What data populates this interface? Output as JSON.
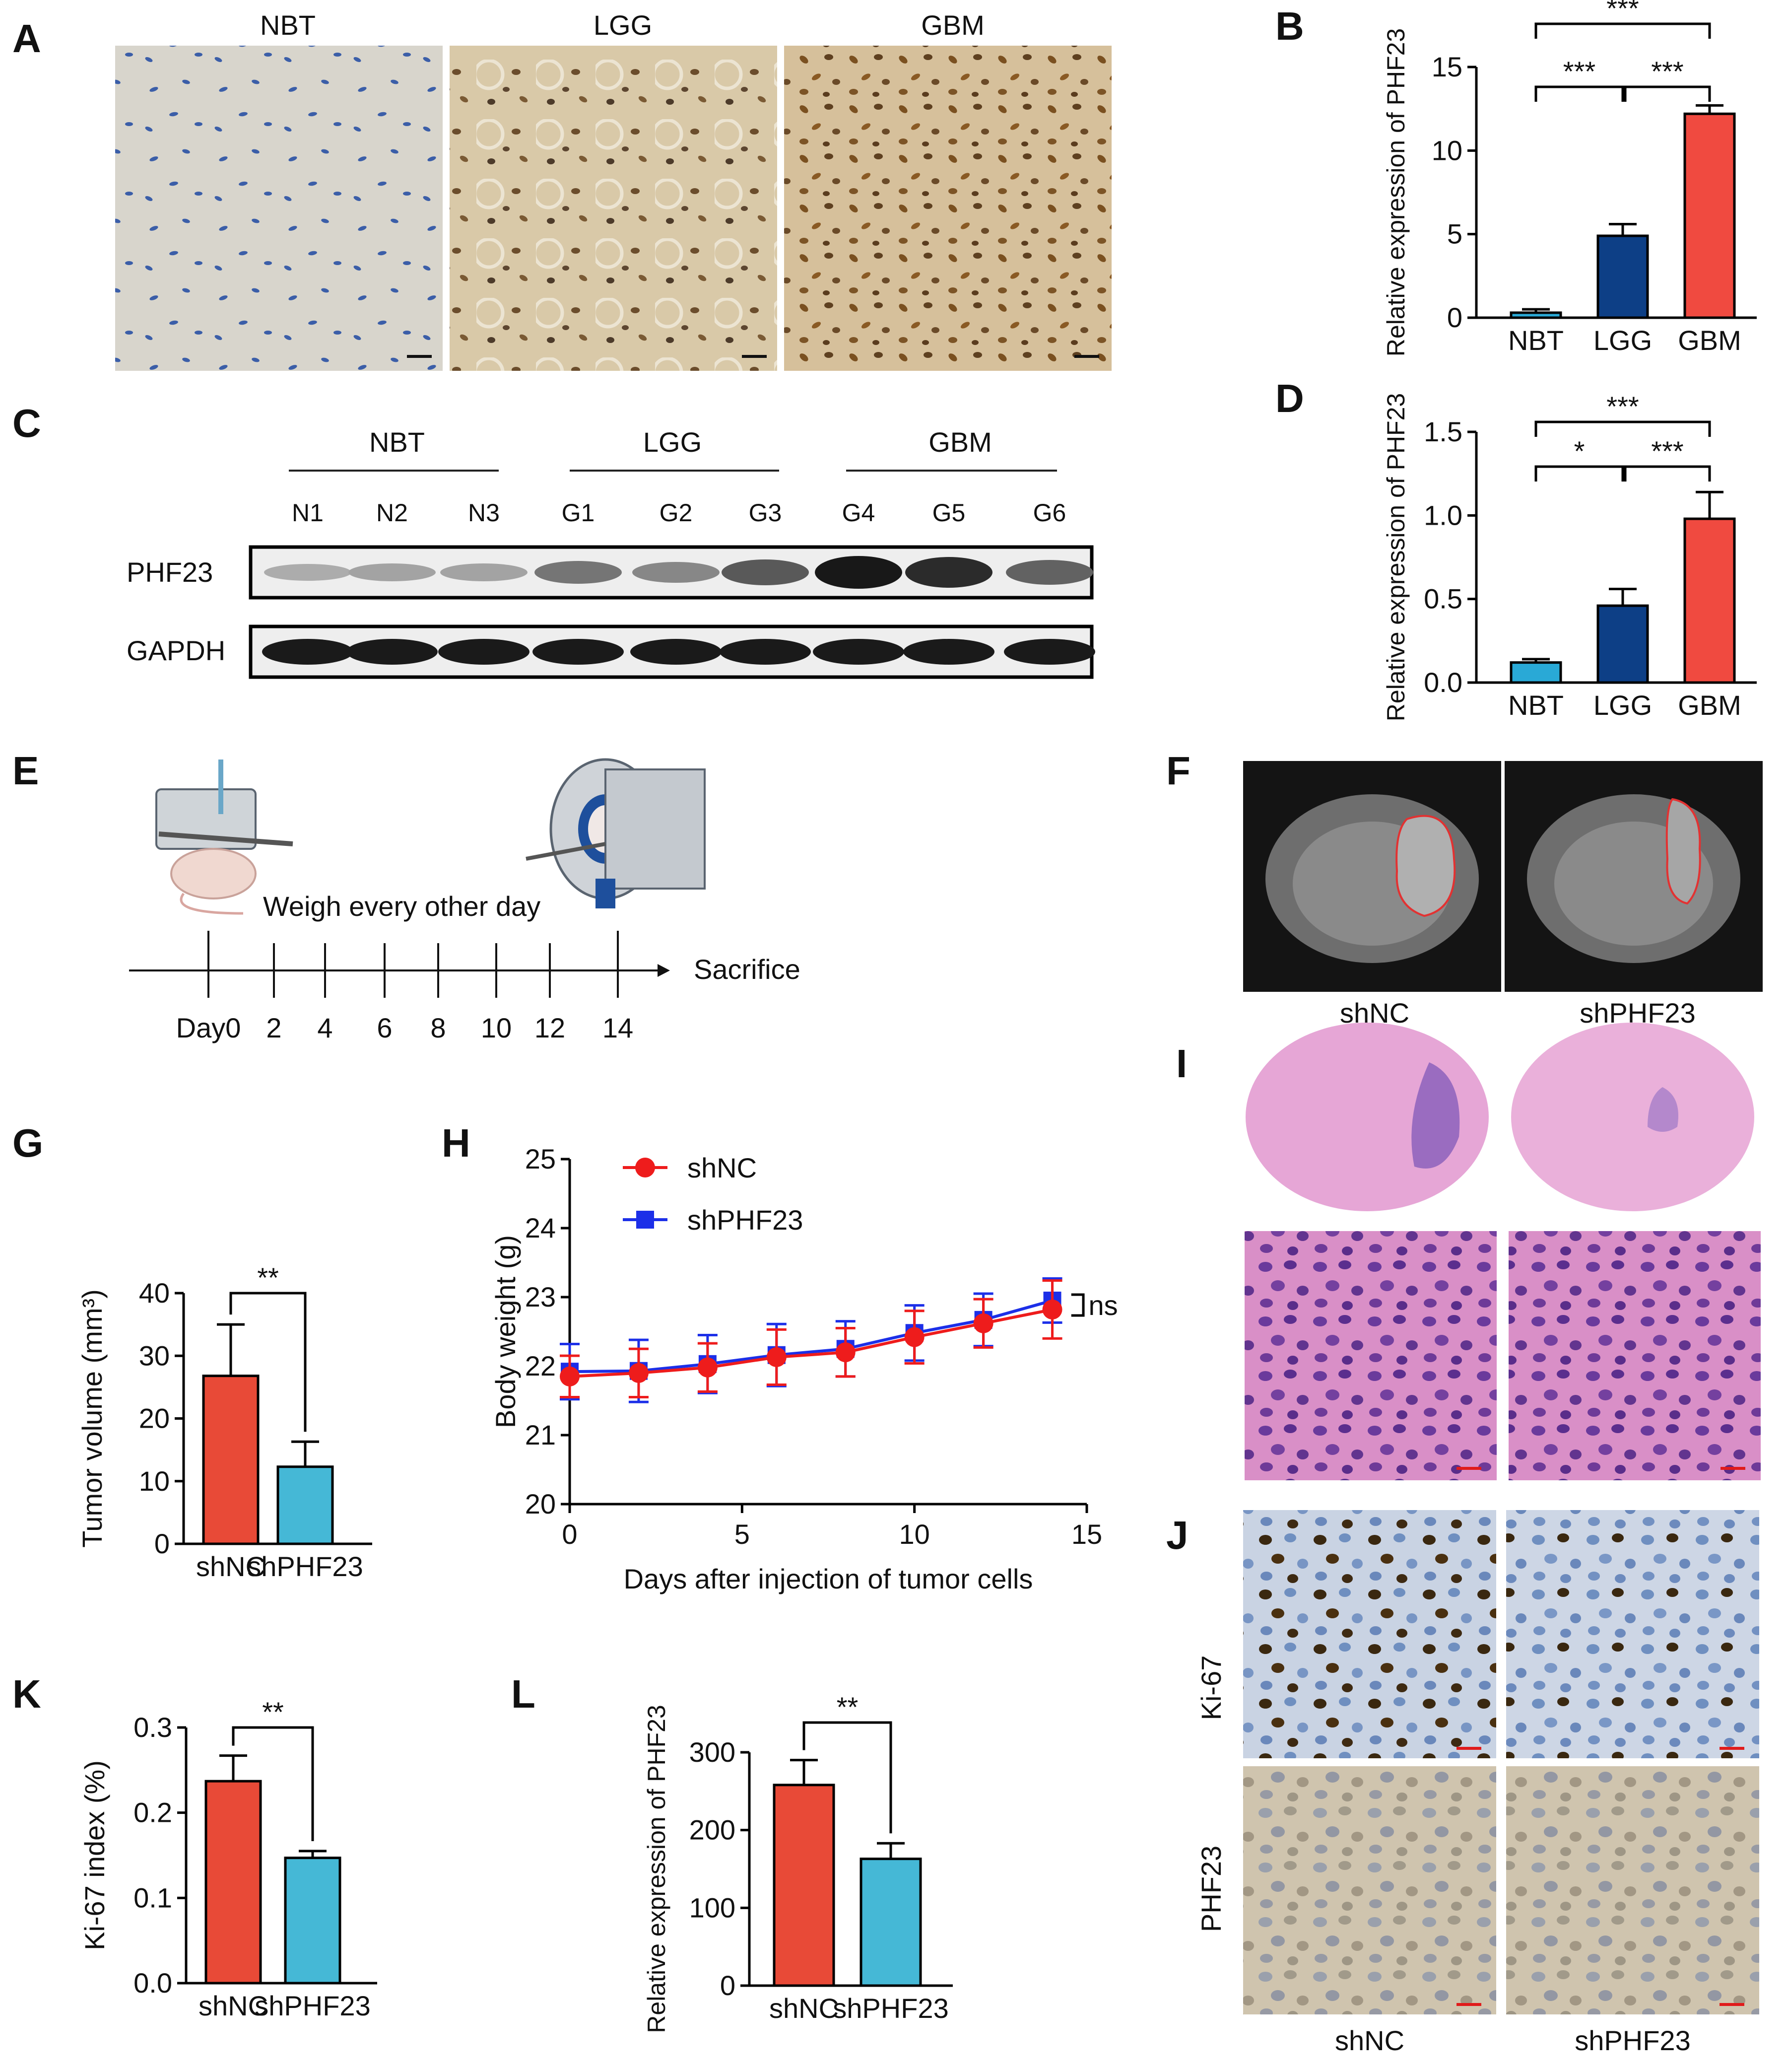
{
  "panels": {
    "A": {
      "letter": "A",
      "labels": [
        "NBT",
        "LGG",
        "GBM"
      ]
    },
    "C": {
      "letter": "C",
      "groups": [
        "NBT",
        "LGG",
        "GBM"
      ],
      "lanes": [
        "N1",
        "N2",
        "N3",
        "G1",
        "G2",
        "G3",
        "G4",
        "G5",
        "G6"
      ],
      "rows": [
        "PHF23",
        "GAPDH"
      ],
      "band_intensity": [
        0.15,
        0.2,
        0.2,
        0.45,
        0.35,
        0.6,
        0.95,
        0.85,
        0.55
      ]
    },
    "E": {
      "letter": "E",
      "weigh_text": "Weigh every other day",
      "sacrifice": "Sacrifice",
      "ticks": [
        "Day0",
        "2",
        "4",
        "6",
        "8",
        "10",
        "12",
        "14"
      ]
    },
    "F": {
      "letter": "F",
      "labels": [
        "shNC",
        "shPHF23"
      ]
    },
    "I": {
      "letter": "I"
    },
    "J": {
      "letter": "J",
      "rows": [
        "Ki-67",
        "PHF23"
      ],
      "cols": [
        "shNC",
        "shPHF23"
      ]
    }
  },
  "chart_data": [
    {
      "id": "B",
      "letter": "B",
      "type": "bar",
      "categories": [
        "NBT",
        "LGG",
        "GBM"
      ],
      "values": [
        0.3,
        4.9,
        12.2
      ],
      "errors": [
        0.2,
        0.7,
        0.5
      ],
      "colors": [
        "#29a9d6",
        "#0d3f86",
        "#f04a40"
      ],
      "ylabel": "Relative expression of PHF23",
      "ylim": [
        0,
        15
      ],
      "ticks": [
        0,
        5,
        10,
        15
      ],
      "tick_labels": [
        "0",
        "5",
        "10",
        "15"
      ],
      "sig": [
        {
          "from": 0,
          "to": 1,
          "label": "***"
        },
        {
          "from": 1,
          "to": 2,
          "label": "***"
        },
        {
          "from": 0,
          "to": 2,
          "label": "***"
        }
      ]
    },
    {
      "id": "D",
      "letter": "D",
      "type": "bar",
      "categories": [
        "NBT",
        "LGG",
        "GBM"
      ],
      "values": [
        0.12,
        0.46,
        0.98
      ],
      "errors": [
        0.02,
        0.1,
        0.16
      ],
      "colors": [
        "#29a9d6",
        "#0d3f86",
        "#f04a40"
      ],
      "ylabel": "Relative expression of PHF23",
      "ylim": [
        0,
        1.5
      ],
      "ticks": [
        0,
        0.5,
        1.0,
        1.5
      ],
      "tick_labels": [
        "0.0",
        "0.5",
        "1.0",
        "1.5"
      ],
      "sig": [
        {
          "from": 0,
          "to": 1,
          "label": "*"
        },
        {
          "from": 1,
          "to": 2,
          "label": "***"
        },
        {
          "from": 0,
          "to": 2,
          "label": "***"
        }
      ]
    },
    {
      "id": "G",
      "letter": "G",
      "type": "bar",
      "categories": [
        "shNC",
        "shPHF23"
      ],
      "values": [
        26.8,
        12.3
      ],
      "errors": [
        8.2,
        4.0
      ],
      "colors": [
        "#e84a37",
        "#45b8d6"
      ],
      "ylabel": "Tumor volume (mm³)",
      "ylim": [
        0,
        40
      ],
      "ticks": [
        0,
        10,
        20,
        30,
        40
      ],
      "tick_labels": [
        "0",
        "10",
        "20",
        "30",
        "40"
      ],
      "sig": [
        {
          "from": 0,
          "to": 1,
          "label": "**"
        }
      ]
    },
    {
      "id": "H",
      "letter": "H",
      "type": "line",
      "x": [
        0,
        2,
        4,
        6,
        8,
        10,
        12,
        14
      ],
      "series": [
        {
          "name": "shNC",
          "color": "#ee1c1c",
          "marker": "circle",
          "values": [
            21.85,
            21.9,
            21.98,
            22.13,
            22.2,
            22.42,
            22.62,
            22.82
          ],
          "errors": [
            0.3,
            0.35,
            0.35,
            0.4,
            0.35,
            0.38,
            0.35,
            0.42
          ]
        },
        {
          "name": "shPHF23",
          "color": "#1c2fe8",
          "marker": "square",
          "values": [
            21.92,
            21.93,
            22.03,
            22.16,
            22.25,
            22.48,
            22.67,
            22.95
          ],
          "errors": [
            0.4,
            0.45,
            0.42,
            0.45,
            0.4,
            0.4,
            0.38,
            0.32
          ]
        }
      ],
      "xlabel": "Days after injection of tumor cells",
      "ylabel": "Body weight (g)",
      "xlim": [
        0,
        15
      ],
      "ylim": [
        20,
        25
      ],
      "xticks": [
        0,
        5,
        10,
        15
      ],
      "xtick_labels": [
        "0",
        "5",
        "10",
        "15"
      ],
      "yticks": [
        20,
        21,
        22,
        23,
        24,
        25
      ],
      "ytick_labels": [
        "20",
        "21",
        "22",
        "23",
        "24",
        "25"
      ],
      "annotation": "ns"
    },
    {
      "id": "K",
      "letter": "K",
      "type": "bar",
      "categories": [
        "shNC",
        "shPHF23"
      ],
      "values": [
        0.237,
        0.147
      ],
      "errors": [
        0.03,
        0.008
      ],
      "colors": [
        "#e84a37",
        "#45b8d6"
      ],
      "ylabel": "Ki-67 index (%)",
      "ylim": [
        0,
        0.3
      ],
      "ticks": [
        0,
        0.1,
        0.2,
        0.3
      ],
      "tick_labels": [
        "0.0",
        "0.1",
        "0.2",
        "0.3"
      ],
      "sig": [
        {
          "from": 0,
          "to": 1,
          "label": "**"
        }
      ]
    },
    {
      "id": "L",
      "letter": "L",
      "type": "bar",
      "categories": [
        "shNC",
        "shPHF23"
      ],
      "values": [
        258,
        163
      ],
      "errors": [
        32,
        20
      ],
      "colors": [
        "#e84a37",
        "#45b8d6"
      ],
      "ylabel": "Relative expression of PHF23",
      "ylim": [
        0,
        300
      ],
      "ticks": [
        0,
        100,
        200,
        300
      ],
      "tick_labels": [
        "0",
        "100",
        "200",
        "300"
      ],
      "sig": [
        {
          "from": 0,
          "to": 1,
          "label": "**"
        }
      ]
    }
  ]
}
